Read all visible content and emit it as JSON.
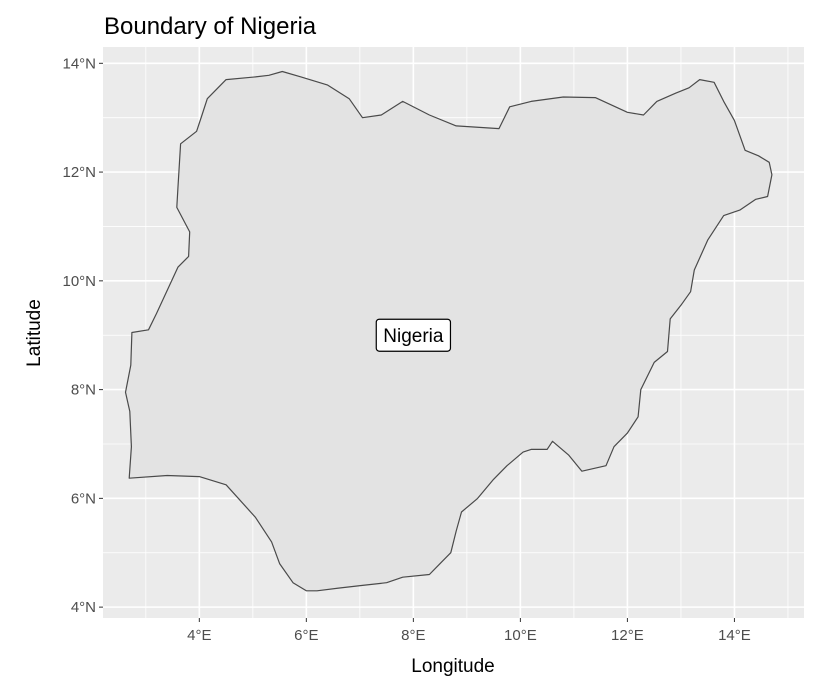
{
  "chart_data": {
    "type": "map",
    "title": "Boundary of Nigeria",
    "xlabel": "Longitude",
    "ylabel": "Latitude",
    "xlim": [
      2.2,
      15.3
    ],
    "ylim": [
      3.8,
      14.3
    ],
    "x_ticks": [
      {
        "value": 4,
        "label": "4°E"
      },
      {
        "value": 6,
        "label": "6°E"
      },
      {
        "value": 8,
        "label": "8°E"
      },
      {
        "value": 10,
        "label": "10°E"
      },
      {
        "value": 12,
        "label": "12°E"
      },
      {
        "value": 14,
        "label": "14°E"
      }
    ],
    "y_ticks": [
      {
        "value": 4,
        "label": "4°N"
      },
      {
        "value": 6,
        "label": "6°N"
      },
      {
        "value": 8,
        "label": "8°N"
      },
      {
        "value": 10,
        "label": "10°N"
      },
      {
        "value": 12,
        "label": "12°N"
      },
      {
        "value": 14,
        "label": "14°N"
      }
    ],
    "grid": true,
    "colors": {
      "panel": "#ebebeb",
      "grid": "#ffffff",
      "fill": "#e3e3e3",
      "stroke": "#4a4a4a"
    },
    "feature": {
      "name": "Nigeria",
      "label_position": [
        8.0,
        9.0
      ],
      "boundary": [
        [
          2.69,
          6.37
        ],
        [
          2.73,
          6.95
        ],
        [
          2.7,
          7.6
        ],
        [
          2.62,
          7.95
        ],
        [
          2.72,
          8.45
        ],
        [
          2.74,
          9.05
        ],
        [
          3.05,
          9.1
        ],
        [
          3.2,
          9.4
        ],
        [
          3.6,
          10.25
        ],
        [
          3.8,
          10.45
        ],
        [
          3.82,
          10.9
        ],
        [
          3.58,
          11.35
        ],
        [
          3.6,
          11.7
        ],
        [
          3.65,
          12.52
        ],
        [
          3.95,
          12.75
        ],
        [
          4.05,
          13.05
        ],
        [
          4.15,
          13.35
        ],
        [
          4.5,
          13.7
        ],
        [
          5.05,
          13.75
        ],
        [
          5.3,
          13.78
        ],
        [
          5.55,
          13.85
        ],
        [
          5.9,
          13.75
        ],
        [
          6.4,
          13.6
        ],
        [
          6.8,
          13.35
        ],
        [
          7.05,
          13.0
        ],
        [
          7.4,
          13.05
        ],
        [
          7.8,
          13.3
        ],
        [
          8.3,
          13.05
        ],
        [
          8.8,
          12.85
        ],
        [
          9.6,
          12.8
        ],
        [
          9.8,
          13.2
        ],
        [
          10.2,
          13.3
        ],
        [
          10.8,
          13.38
        ],
        [
          11.4,
          13.37
        ],
        [
          12.0,
          13.1
        ],
        [
          12.3,
          13.05
        ],
        [
          12.55,
          13.3
        ],
        [
          12.9,
          13.45
        ],
        [
          13.15,
          13.55
        ],
        [
          13.35,
          13.7
        ],
        [
          13.62,
          13.65
        ],
        [
          13.8,
          13.3
        ],
        [
          14.0,
          12.95
        ],
        [
          14.2,
          12.4
        ],
        [
          14.45,
          12.3
        ],
        [
          14.65,
          12.18
        ],
        [
          14.7,
          11.95
        ],
        [
          14.62,
          11.55
        ],
        [
          14.4,
          11.5
        ],
        [
          14.1,
          11.3
        ],
        [
          13.8,
          11.2
        ],
        [
          13.5,
          10.75
        ],
        [
          13.25,
          10.2
        ],
        [
          13.18,
          9.8
        ],
        [
          13.0,
          9.55
        ],
        [
          12.8,
          9.3
        ],
        [
          12.75,
          8.7
        ],
        [
          12.5,
          8.5
        ],
        [
          12.25,
          8.0
        ],
        [
          12.2,
          7.5
        ],
        [
          12.0,
          7.2
        ],
        [
          11.75,
          6.95
        ],
        [
          11.6,
          6.6
        ],
        [
          11.15,
          6.5
        ],
        [
          10.9,
          6.8
        ],
        [
          10.6,
          7.05
        ],
        [
          10.5,
          6.9
        ],
        [
          10.2,
          6.9
        ],
        [
          10.05,
          6.85
        ],
        [
          9.75,
          6.6
        ],
        [
          9.5,
          6.35
        ],
        [
          9.2,
          6.0
        ],
        [
          8.9,
          5.75
        ],
        [
          8.8,
          5.4
        ],
        [
          8.7,
          5.0
        ],
        [
          8.5,
          4.8
        ],
        [
          8.3,
          4.6
        ],
        [
          7.8,
          4.55
        ],
        [
          7.5,
          4.45
        ],
        [
          7.05,
          4.4
        ],
        [
          6.6,
          4.35
        ],
        [
          6.2,
          4.3
        ],
        [
          6.0,
          4.3
        ],
        [
          5.75,
          4.45
        ],
        [
          5.5,
          4.8
        ],
        [
          5.35,
          5.2
        ],
        [
          5.05,
          5.65
        ],
        [
          4.5,
          6.25
        ],
        [
          4.0,
          6.4
        ],
        [
          3.4,
          6.42
        ],
        [
          2.69,
          6.37
        ]
      ]
    }
  }
}
